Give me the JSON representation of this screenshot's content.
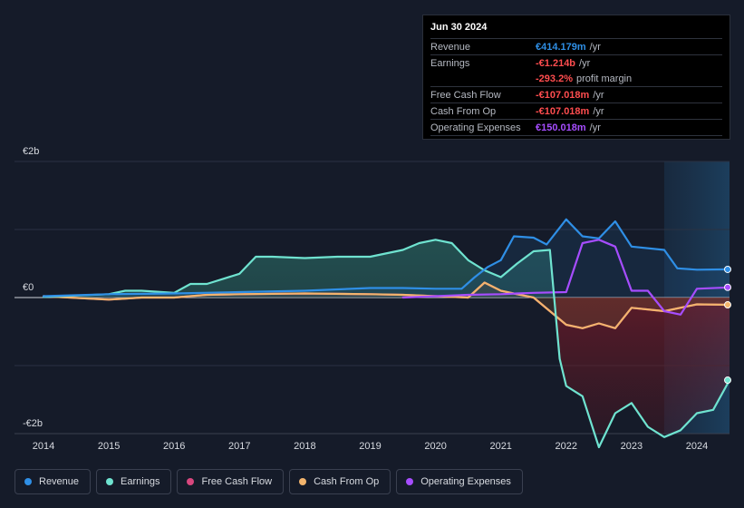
{
  "tooltip": {
    "date": "Jun 30 2024",
    "rows": [
      {
        "label": "Revenue",
        "value": "€414.179m",
        "unit": "/yr",
        "color": "#2f8fe6"
      },
      {
        "label": "Earnings",
        "value": "-€1.214b",
        "unit": "/yr",
        "color": "#ff4d4f"
      },
      {
        "label": "",
        "value": "-293.2%",
        "unit": "profit margin",
        "color": "#ff4d4f"
      },
      {
        "label": "Free Cash Flow",
        "value": "-€107.018m",
        "unit": "/yr",
        "color": "#ff4d4f"
      },
      {
        "label": "Cash From Op",
        "value": "-€107.018m",
        "unit": "/yr",
        "color": "#ff4d4f"
      },
      {
        "label": "Operating Expenses",
        "value": "€150.018m",
        "unit": "/yr",
        "color": "#a64dff"
      }
    ]
  },
  "legend": [
    {
      "label": "Revenue",
      "color": "#2f8fe6"
    },
    {
      "label": "Earnings",
      "color": "#6fe3d0"
    },
    {
      "label": "Free Cash Flow",
      "color": "#d8477e"
    },
    {
      "label": "Cash From Op",
      "color": "#f2b46d"
    },
    {
      "label": "Operating Expenses",
      "color": "#a64dff"
    }
  ],
  "chart_data": {
    "type": "line",
    "title": "",
    "y_axis_top_label": "€2b",
    "y_axis_zero_label": "€0",
    "y_axis_bottom_label": "-€2b",
    "ylim": [
      -2.0,
      2.0
    ],
    "xlim": [
      2013.75,
      2024.5
    ],
    "x_ticks": [
      "2014",
      "2015",
      "2016",
      "2017",
      "2018",
      "2019",
      "2020",
      "2021",
      "2022",
      "2023",
      "2024"
    ],
    "forecast_start": 2023.5,
    "series": [
      {
        "name": "Revenue",
        "color": "#2f8fe6",
        "x": [
          2014,
          2015,
          2016,
          2017,
          2018,
          2019,
          2019.5,
          2020,
          2020.4,
          2020.6,
          2020.8,
          2021,
          2021.2,
          2021.5,
          2021.7,
          2022,
          2022.25,
          2022.5,
          2022.75,
          2023,
          2023.5,
          2023.7,
          2024,
          2024.5
        ],
        "values": [
          0.02,
          0.05,
          0.06,
          0.08,
          0.1,
          0.14,
          0.14,
          0.13,
          0.13,
          0.3,
          0.45,
          0.55,
          0.9,
          0.88,
          0.78,
          1.15,
          0.9,
          0.87,
          1.12,
          0.75,
          0.7,
          0.43,
          0.41,
          0.414
        ]
      },
      {
        "name": "Earnings",
        "color": "#6fe3d0",
        "x": [
          2014,
          2014.5,
          2015,
          2015.25,
          2015.5,
          2016,
          2016.25,
          2016.5,
          2017,
          2017.25,
          2017.5,
          2018,
          2018.5,
          2019,
          2019.5,
          2019.75,
          2020,
          2020.25,
          2020.5,
          2020.75,
          2021,
          2021.25,
          2021.5,
          2021.75,
          2021.9,
          2022,
          2022.25,
          2022.5,
          2022.75,
          2023,
          2023.25,
          2023.5,
          2023.75,
          2024,
          2024.25,
          2024.5
        ],
        "values": [
          0.01,
          0.03,
          0.05,
          0.1,
          0.1,
          0.07,
          0.2,
          0.2,
          0.35,
          0.6,
          0.6,
          0.58,
          0.6,
          0.6,
          0.7,
          0.8,
          0.85,
          0.8,
          0.55,
          0.4,
          0.3,
          0.5,
          0.68,
          0.7,
          -0.9,
          -1.3,
          -1.45,
          -2.2,
          -1.7,
          -1.55,
          -1.9,
          -2.05,
          -1.95,
          -1.7,
          -1.65,
          -1.214
        ]
      },
      {
        "name": "Cash From Op",
        "color": "#f2b46d",
        "x": [
          2014,
          2015,
          2015.5,
          2016,
          2016.5,
          2017,
          2018,
          2019,
          2019.5,
          2020,
          2020.5,
          2020.75,
          2021,
          2021.25,
          2021.5,
          2021.75,
          2022,
          2022.25,
          2022.5,
          2022.75,
          2023,
          2023.5,
          2024,
          2024.5
        ],
        "values": [
          0.02,
          -0.03,
          0.0,
          0.0,
          0.04,
          0.05,
          0.06,
          0.05,
          0.04,
          0.02,
          0.0,
          0.22,
          0.1,
          0.05,
          0.0,
          -0.2,
          -0.4,
          -0.45,
          -0.38,
          -0.45,
          -0.15,
          -0.2,
          -0.1,
          -0.107
        ]
      },
      {
        "name": "Free Cash Flow",
        "color": "#d8477e",
        "x": [
          2014,
          2015,
          2015.5,
          2016,
          2016.5,
          2017,
          2018,
          2019,
          2019.5,
          2020,
          2020.5,
          2020.75,
          2021,
          2021.25,
          2021.5,
          2021.75,
          2022,
          2022.25,
          2022.5,
          2022.75,
          2023,
          2023.5,
          2024,
          2024.5
        ],
        "values": [
          0.02,
          -0.03,
          0.0,
          0.0,
          0.04,
          0.05,
          0.06,
          0.05,
          0.04,
          0.02,
          0.0,
          0.22,
          0.1,
          0.05,
          0.0,
          -0.2,
          -0.4,
          -0.45,
          -0.38,
          -0.45,
          -0.15,
          -0.2,
          -0.1,
          -0.107
        ]
      },
      {
        "name": "Operating Expenses",
        "color": "#a64dff",
        "x": [
          2019.5,
          2020,
          2020.5,
          2021,
          2021.25,
          2021.5,
          2022,
          2022.25,
          2022.5,
          2022.75,
          2023,
          2023.25,
          2023.5,
          2023.75,
          2024,
          2024.5
        ],
        "values": [
          0.0,
          0.02,
          0.04,
          0.05,
          0.06,
          0.07,
          0.08,
          0.8,
          0.85,
          0.75,
          0.1,
          0.1,
          -0.2,
          -0.25,
          0.13,
          0.15
        ]
      }
    ]
  }
}
